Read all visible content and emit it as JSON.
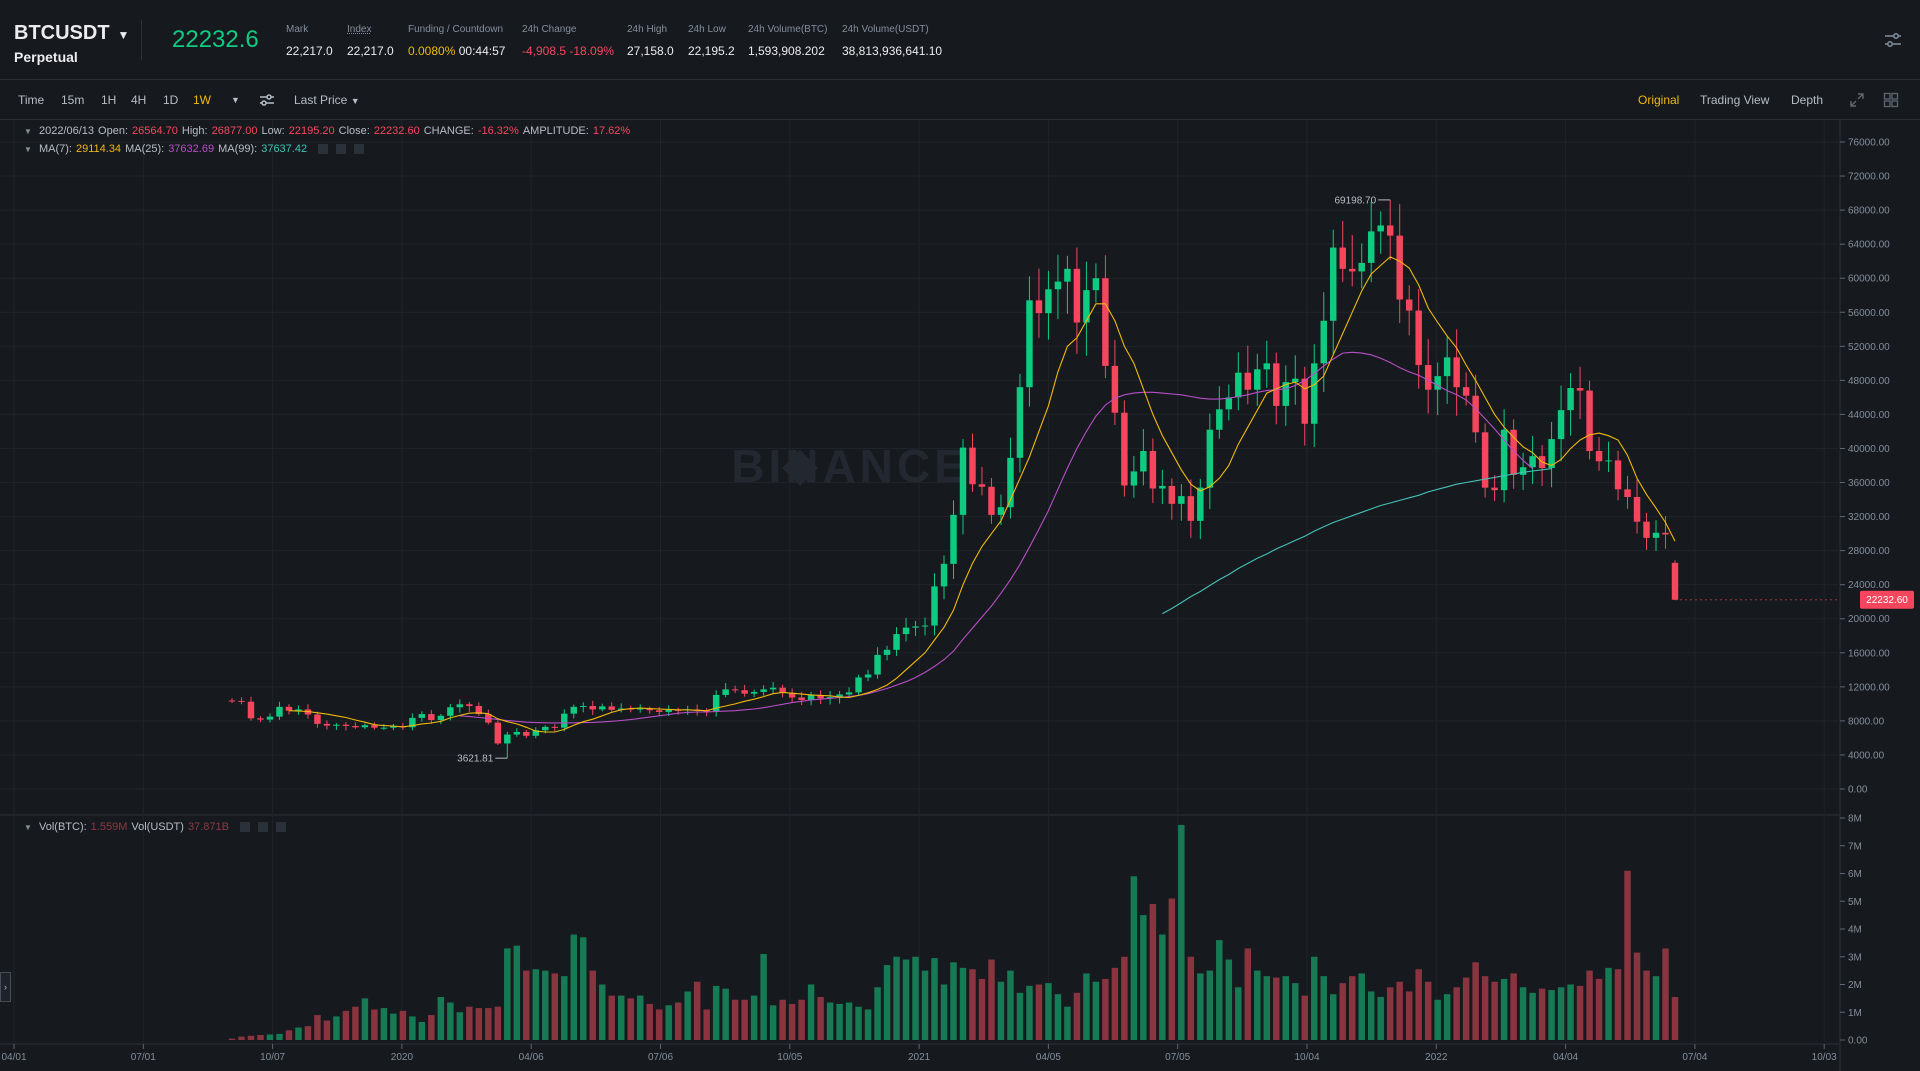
{
  "header": {
    "symbol": "BTCUSDT",
    "contract": "Perpetual",
    "last_price": "22232.6",
    "stats": [
      {
        "label": "Mark",
        "value": "22,217.0"
      },
      {
        "label": "Index",
        "value": "22,217.0"
      },
      {
        "label": "Funding / Countdown",
        "value": "0.0080%",
        "value2": "00:44:57"
      },
      {
        "label": "24h Change",
        "value": "-4,908.5 -18.09%"
      },
      {
        "label": "24h High",
        "value": "27,158.0"
      },
      {
        "label": "24h Low",
        "value": "22,195.2"
      },
      {
        "label": "24h Volume(BTC)",
        "value": "1,593,908.202"
      },
      {
        "label": "24h Volume(USDT)",
        "value": "38,813,936,641.10"
      }
    ]
  },
  "toolbar": {
    "intervals": [
      "Time",
      "15m",
      "1H",
      "4H",
      "1D",
      "1W"
    ],
    "active_interval": "1W",
    "price_type": "Last Price",
    "views": [
      "Original",
      "Trading View",
      "Depth"
    ],
    "active_view": "Original"
  },
  "ohlc_legend": {
    "date": "2022/06/13",
    "open_label": "Open:",
    "open": "26564.70",
    "high_label": "High:",
    "high": "26877.00",
    "low_label": "Low:",
    "low": "22195.20",
    "close_label": "Close:",
    "close": "22232.60",
    "change_label": "CHANGE:",
    "change": "-16.32%",
    "amplitude_label": "AMPLITUDE:",
    "amplitude": "17.62%"
  },
  "ma_legend": {
    "ma7_label": "MA(7):",
    "ma7": "29114.34",
    "ma25_label": "MA(25):",
    "ma25": "37632.69",
    "ma99_label": "MA(99):",
    "ma99": "37637.42"
  },
  "vol_legend": {
    "btc_label": "Vol(BTC):",
    "btc": "1.559M",
    "usdt_label": "Vol(USDT)",
    "usdt": "37.871B"
  },
  "colors": {
    "up": "#0ecb81",
    "down": "#f6465d",
    "ma7": "#f0b90b",
    "ma25": "#b74ec7",
    "ma99": "#46c1b5",
    "background": "#161a1e",
    "grid": "#1f242a"
  },
  "watermark": "BINANCE",
  "chart_data": {
    "type": "candlestick",
    "interval": "1W",
    "price_axis": {
      "ticks": [
        "76000.00",
        "72000.00",
        "68000.00",
        "64000.00",
        "60000.00",
        "56000.00",
        "52000.00",
        "48000.00",
        "44000.00",
        "40000.00",
        "36000.00",
        "32000.00",
        "28000.00",
        "24000.00",
        "20000.00",
        "16000.00",
        "12000.00",
        "8000.00",
        "4000.00",
        "0.00"
      ],
      "range": [
        0,
        76000
      ]
    },
    "volume_axis": {
      "ticks": [
        "8M",
        "7M",
        "6M",
        "5M",
        "4M",
        "3M",
        "2M",
        "1M",
        "0.00"
      ],
      "range": [
        0,
        8
      ]
    },
    "time_axis": {
      "ticks": [
        "04/01",
        "07/01",
        "10/07",
        "2020",
        "04/06",
        "07/06",
        "10/05",
        "2021",
        "04/05",
        "07/05",
        "10/04",
        "2022",
        "04/04",
        "07/04",
        "10/03"
      ]
    },
    "annotations": {
      "max": "69198.70",
      "min": "3621.81"
    },
    "current_price_label": "22232.60",
    "candles_note": "weekly OHLC, Sep 2019 - Jun 2022; volume in millions BTC",
    "closes": [
      10350,
      10250,
      8300,
      8150,
      8500,
      9650,
      9200,
      9350,
      8750,
      7650,
      7450,
      7550,
      7400,
      7250,
      7500,
      7200,
      7200,
      7400,
      7250,
      8350,
      8800,
      8100,
      8600,
      9600,
      9950,
      9750,
      8800,
      7800,
      5350,
      6400,
      6700,
      6250,
      6900,
      7300,
      7200,
      8850,
      9650,
      9750,
      9350,
      9700,
      9300,
      9450,
      9350,
      9450,
      9250,
      9050,
      9300,
      9250,
      9350,
      9200,
      9150,
      11050,
      11700,
      11600,
      11200,
      11400,
      11700,
      11900,
      11300,
      10750,
      10450,
      11050,
      10650,
      10800,
      11100,
      11350,
      13100,
      13450,
      15750,
      16350,
      18200,
      18950,
      19100,
      19200,
      23800,
      26450,
      32200,
      40100,
      35800,
      35500,
      32200,
      33100,
      38900,
      47200,
      57400,
      55900,
      58700,
      59600,
      61100,
      54800,
      58600,
      60000,
      49700,
      44200,
      35650,
      37300,
      39700,
      35300,
      35600,
      33500,
      34400,
      31500,
      35400,
      42200,
      44600,
      46000,
      48900,
      46900,
      49300,
      50000,
      45000,
      47800,
      48200,
      42900,
      50000,
      55000,
      63600,
      61100,
      60800,
      61800,
      65500,
      66200,
      65000,
      57500,
      56200,
      49800,
      46900,
      48500,
      50700,
      47200,
      46200,
      41900,
      35400,
      35100,
      42200,
      36900,
      37800,
      39100,
      37700,
      41100,
      44500,
      47100,
      46800,
      39700,
      38500,
      38600,
      35200,
      34300,
      31400,
      29500,
      30100,
      29900,
      22232
    ],
    "ma7": [
      null,
      null,
      null,
      null,
      null,
      null,
      9200,
      9150,
      9100,
      8950,
      8800,
      8600,
      8400,
      8100,
      7850,
      7550,
      7450,
      7400,
      7300,
      7450,
      7650,
      7750,
      7950,
      8350,
      8650,
      8900,
      8950,
      8850,
      8250,
      7900,
      7650,
      7250,
      6800,
      6700,
      6700,
      7000,
      7500,
      7900,
      8200,
      8600,
      9000,
      9300,
      9450,
      9500,
      9450,
      9400,
      9350,
      9300,
      9300,
      9250,
      9200,
      9500,
      9750,
      10000,
      10300,
      10550,
      10850,
      11200,
      11350,
      11250,
      11150,
      11050,
      11000,
      10950,
      10800,
      10750,
      11000,
      11300,
      11700,
      12200,
      13000,
      14000,
      15000,
      16000,
      17500,
      19000,
      21000,
      24000,
      26500,
      28500,
      30000,
      31500,
      34000,
      36500,
      39000,
      42000,
      45000,
      49000,
      52000,
      53000,
      55000,
      57000,
      57000,
      55000,
      52000,
      50000,
      47000,
      44000,
      41500,
      39500,
      37500,
      35800,
      35000,
      35500,
      36500,
      38000,
      40500,
      42500,
      44500,
      46500,
      47000,
      47500,
      47800,
      47000,
      47500,
      48500,
      51000,
      53500,
      56000,
      58500,
      60500,
      61500,
      62500,
      62000,
      61200,
      59200,
      56500,
      54800,
      53200,
      51800,
      49800,
      48000,
      46000,
      44000,
      42500,
      41300,
      40200,
      39500,
      38400,
      38000,
      38700,
      40000,
      41000,
      41600,
      41800,
      41500,
      41000,
      39200,
      36500,
      34600,
      33000,
      31300,
      29114
    ],
    "ma25": [
      null,
      null,
      null,
      null,
      null,
      null,
      null,
      null,
      null,
      null,
      null,
      null,
      null,
      null,
      null,
      null,
      null,
      null,
      null,
      null,
      null,
      null,
      null,
      null,
      8600,
      8500,
      8400,
      8300,
      8150,
      8050,
      7950,
      7850,
      7800,
      7780,
      7760,
      7760,
      7780,
      7800,
      7820,
      7880,
      7950,
      8050,
      8150,
      8300,
      8450,
      8600,
      8750,
      8900,
      9000,
      9050,
      9050,
      9100,
      9150,
      9200,
      9300,
      9400,
      9550,
      9750,
      9950,
      10150,
      10300,
      10450,
      10550,
      10650,
      10750,
      10850,
      11000,
      11200,
      11500,
      11800,
      12200,
      12600,
      13100,
      13700,
      14400,
      15200,
      16200,
      17600,
      18900,
      20200,
      21500,
      23000,
      24600,
      26400,
      28400,
      30500,
      32700,
      35200,
      37700,
      40000,
      42000,
      43800,
      45100,
      45900,
      46300,
      46500,
      46600,
      46600,
      46500,
      46400,
      46300,
      46100,
      45900,
      45800,
      45800,
      45900,
      46100,
      46300,
      46600,
      46800,
      46900,
      47000,
      47400,
      48000,
      48800,
      49700,
      50500,
      51200,
      51300,
      51200,
      51000,
      50600,
      50100,
      49500,
      49000,
      48600,
      48000,
      47400,
      46800,
      46300,
      45700,
      44700,
      43500,
      42300,
      41000,
      39700,
      38600,
      37632
    ],
    "ma99": [
      null,
      null,
      null,
      null,
      null,
      null,
      null,
      null,
      null,
      null,
      null,
      null,
      null,
      null,
      null,
      null,
      null,
      null,
      null,
      null,
      null,
      null,
      null,
      null,
      null,
      null,
      null,
      null,
      null,
      null,
      null,
      null,
      null,
      null,
      null,
      null,
      null,
      null,
      null,
      null,
      null,
      null,
      null,
      null,
      null,
      null,
      null,
      null,
      null,
      null,
      null,
      null,
      null,
      null,
      null,
      null,
      null,
      null,
      null,
      null,
      null,
      null,
      null,
      null,
      null,
      null,
      null,
      null,
      null,
      null,
      null,
      null,
      null,
      null,
      null,
      null,
      null,
      null,
      null,
      null,
      null,
      null,
      null,
      null,
      null,
      null,
      null,
      null,
      null,
      null,
      null,
      null,
      null,
      null,
      null,
      null,
      null,
      null,
      20600,
      21200,
      21900,
      22600,
      23200,
      23900,
      24600,
      25200,
      25900,
      26500,
      27100,
      27600,
      28200,
      28700,
      29200,
      29700,
      30300,
      30800,
      31300,
      31700,
      32100,
      32500,
      32900,
      33300,
      33600,
      33900,
      34200,
      34500,
      34900,
      35200,
      35500,
      35800,
      36000,
      36200,
      36400,
      36600,
      36800,
      37000,
      37200,
      37350,
      37500,
      37637
    ],
    "volumes": [
      0.05,
      0.12,
      0.15,
      0.18,
      0.2,
      0.22,
      0.35,
      0.45,
      0.5,
      0.9,
      0.7,
      0.85,
      1.05,
      1.2,
      1.5,
      1.1,
      1.15,
      0.95,
      1.05,
      0.85,
      0.65,
      0.9,
      1.55,
      1.35,
      1.0,
      1.2,
      1.15,
      1.15,
      1.2,
      3.3,
      3.4,
      2.5,
      2.55,
      2.5,
      2.4,
      2.3,
      3.8,
      3.7,
      2.5,
      2.0,
      1.6,
      1.6,
      1.5,
      1.6,
      1.3,
      1.1,
      1.25,
      1.35,
      1.75,
      2.1,
      1.1,
      1.95,
      1.85,
      1.45,
      1.45,
      1.6,
      3.1,
      1.25,
      1.45,
      1.3,
      1.45,
      2.0,
      1.55,
      1.35,
      1.3,
      1.35,
      1.2,
      1.1,
      1.9,
      2.7,
      3.0,
      2.9,
      3.0,
      2.5,
      2.95,
      2.0,
      2.8,
      2.6,
      2.55,
      2.2,
      2.9,
      2.1,
      2.5,
      1.7,
      1.95,
      2.0,
      2.05,
      1.65,
      1.2,
      1.7,
      2.4,
      2.1,
      2.2,
      2.6,
      3.0,
      5.9,
      4.5,
      4.9,
      3.8,
      5.1,
      7.75,
      3.0,
      2.4,
      2.5,
      3.6,
      2.9,
      1.9,
      3.3,
      2.5,
      2.3,
      2.25,
      2.3,
      2.05,
      1.6,
      3.0,
      2.3,
      1.65,
      2.05,
      2.3,
      2.4,
      1.75,
      1.55,
      1.9,
      2.1,
      1.75,
      2.55,
      2.1,
      1.45,
      1.65,
      1.9,
      2.25,
      2.8,
      2.3,
      2.1,
      2.2,
      2.4,
      1.9,
      1.7,
      1.85,
      1.8,
      1.9,
      2.0,
      1.95,
      2.5,
      2.2,
      2.6,
      2.55,
      6.1,
      3.15,
      2.5,
      2.3,
      3.3,
      1.55
    ]
  }
}
